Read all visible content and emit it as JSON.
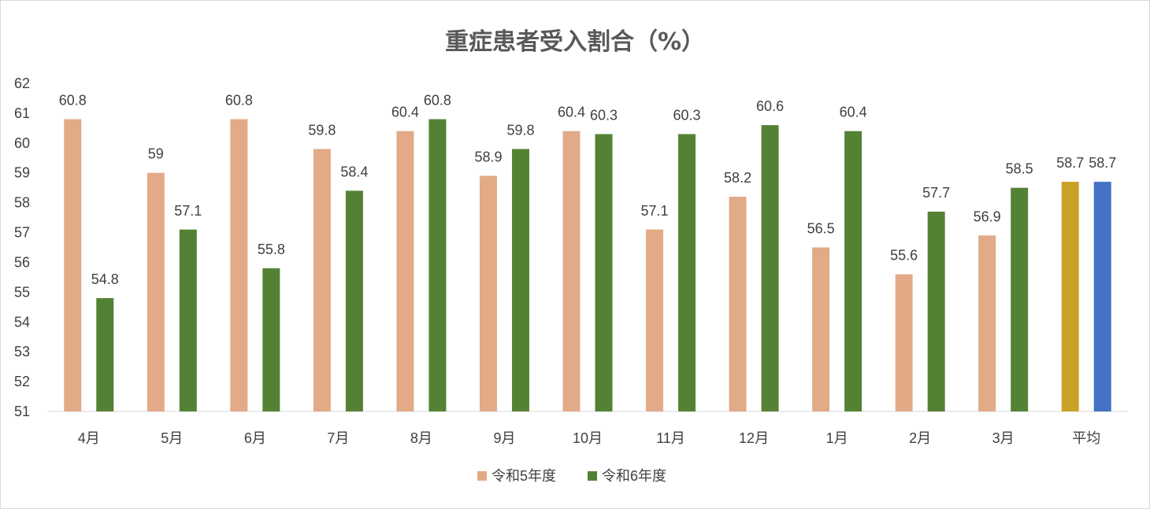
{
  "chart_data": {
    "type": "bar",
    "title": "重症患者受入割合（%）",
    "categories": [
      "4月",
      "5月",
      "6月",
      "7月",
      "8月",
      "9月",
      "10月",
      "11月",
      "12月",
      "1月",
      "2月",
      "3月",
      "平均"
    ],
    "series": [
      {
        "name": "令和5年度",
        "color": "#E2AA87",
        "values": [
          60.8,
          59,
          60.8,
          59.8,
          60.4,
          58.9,
          60.4,
          57.1,
          58.2,
          56.5,
          55.6,
          56.9,
          58.7
        ],
        "labels": [
          "60.8",
          "59",
          "60.8",
          "59.8",
          "60.4",
          "58.9",
          "60.4",
          "57.1",
          "58.2",
          "56.5",
          "55.6",
          "56.9",
          "58.7"
        ],
        "average_color": "#C9A227"
      },
      {
        "name": "令和6年度",
        "color": "#548235",
        "values": [
          54.8,
          57.1,
          55.8,
          58.4,
          60.8,
          59.8,
          60.3,
          60.3,
          60.6,
          60.4,
          57.7,
          58.5,
          58.7
        ],
        "labels": [
          "54.8",
          "57.1",
          "55.8",
          "58.4",
          "60.8",
          "59.8",
          "60.3",
          "60.3",
          "60.6",
          "60.4",
          "57.7",
          "58.5",
          "58.7"
        ],
        "average_color": "#4472C4"
      }
    ],
    "ylim": [
      51,
      62
    ],
    "yticks": [
      "51",
      "52",
      "53",
      "54",
      "55",
      "56",
      "57",
      "58",
      "59",
      "60",
      "61",
      "62"
    ],
    "xlabel": "",
    "ylabel": "",
    "grid": false,
    "legend": "bottom"
  }
}
